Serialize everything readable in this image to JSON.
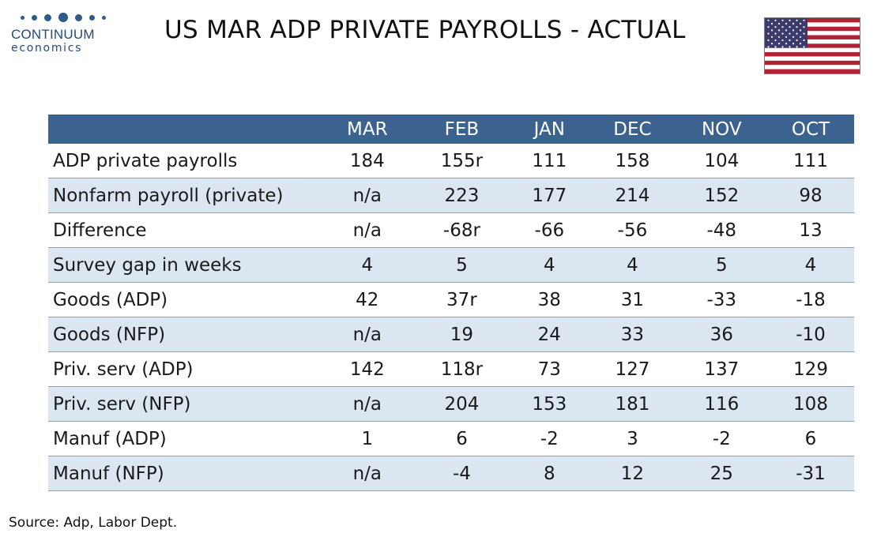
{
  "brand": {
    "name": "CONTINUUM",
    "sub": "economics",
    "color": "#2f5b8a"
  },
  "title": "US MAR ADP PRIVATE PAYROLLS - ACTUAL",
  "flag": {
    "icon": "us-flag-icon",
    "red": "#b22234",
    "blue": "#3c3b6e"
  },
  "chart_data": {
    "type": "table",
    "columns": [
      "MAR",
      "FEB",
      "JAN",
      "DEC",
      "NOV",
      "OCT"
    ],
    "rows": [
      {
        "label": "ADP private payrolls",
        "values": [
          "184",
          "155r",
          "111",
          "158",
          "104",
          "111"
        ]
      },
      {
        "label": "Nonfarm payroll (private)",
        "values": [
          "n/a",
          "223",
          "177",
          "214",
          "152",
          "98"
        ]
      },
      {
        "label": "Difference",
        "values": [
          "n/a",
          "-68r",
          "-66",
          "-56",
          "-48",
          "13"
        ]
      },
      {
        "label": "Survey gap in weeks",
        "values": [
          "4",
          "5",
          "4",
          "4",
          "5",
          "4"
        ]
      },
      {
        "label": "Goods (ADP)",
        "values": [
          "42",
          "37r",
          "38",
          "31",
          "-33",
          "-18"
        ]
      },
      {
        "label": "Goods (NFP)",
        "values": [
          "n/a",
          "19",
          "24",
          "33",
          "36",
          "-10"
        ]
      },
      {
        "label": "Priv. serv (ADP)",
        "values": [
          "142",
          "118r",
          "73",
          "127",
          "137",
          "129"
        ]
      },
      {
        "label": "Priv. serv (NFP)",
        "values": [
          "n/a",
          "204",
          "153",
          "181",
          "116",
          "108"
        ]
      },
      {
        "label": "Manuf (ADP)",
        "values": [
          "1",
          "6",
          "-2",
          "3",
          "-2",
          "6"
        ]
      },
      {
        "label": "Manuf (NFP)",
        "values": [
          "n/a",
          "-4",
          "8",
          "12",
          "25",
          "-31"
        ]
      }
    ],
    "header_color": "#3c6290",
    "stripe_color": "#dce6f1"
  },
  "source": "Source: Adp, Labor Dept."
}
